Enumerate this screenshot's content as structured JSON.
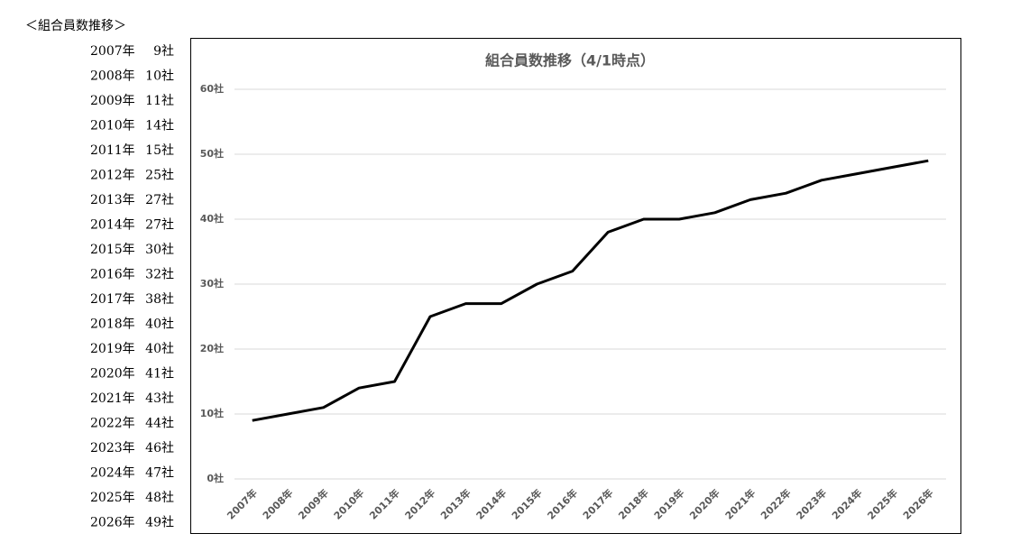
{
  "heading": "＜組合員数推移＞",
  "list": [
    {
      "year": "2007年",
      "count": "9社"
    },
    {
      "year": "2008年",
      "count": "10社"
    },
    {
      "year": "2009年",
      "count": "11社"
    },
    {
      "year": "2010年",
      "count": "14社"
    },
    {
      "year": "2011年",
      "count": "15社"
    },
    {
      "year": "2012年",
      "count": "25社"
    },
    {
      "year": "2013年",
      "count": "27社"
    },
    {
      "year": "2014年",
      "count": "27社"
    },
    {
      "year": "2015年",
      "count": "30社"
    },
    {
      "year": "2016年",
      "count": "32社"
    },
    {
      "year": "2017年",
      "count": "38社"
    },
    {
      "year": "2018年",
      "count": "40社"
    },
    {
      "year": "2019年",
      "count": "40社"
    },
    {
      "year": "2020年",
      "count": "41社"
    },
    {
      "year": "2021年",
      "count": "43社"
    },
    {
      "year": "2022年",
      "count": "44社"
    },
    {
      "year": "2023年",
      "count": "46社"
    },
    {
      "year": "2024年",
      "count": "47社"
    },
    {
      "year": "2025年",
      "count": "48社"
    },
    {
      "year": "2026年",
      "count": "49社"
    }
  ],
  "chart_data": {
    "type": "line",
    "title": "組合員数推移（4/1時点）",
    "categories": [
      "2007年",
      "2008年",
      "2009年",
      "2010年",
      "2011年",
      "2012年",
      "2013年",
      "2014年",
      "2015年",
      "2016年",
      "2017年",
      "2018年",
      "2019年",
      "2020年",
      "2021年",
      "2022年",
      "2023年",
      "2024年",
      "2025年",
      "2026年"
    ],
    "values": [
      9,
      10,
      11,
      14,
      15,
      25,
      27,
      27,
      30,
      32,
      38,
      40,
      40,
      41,
      43,
      44,
      46,
      47,
      48,
      49
    ],
    "color": "#000000",
    "ylim": [
      0,
      60
    ],
    "yticks": [
      {
        "value": 0,
        "label": "0社"
      },
      {
        "value": 10,
        "label": "10社"
      },
      {
        "value": 20,
        "label": "20社"
      },
      {
        "value": 30,
        "label": "30社"
      },
      {
        "value": 40,
        "label": "40社"
      },
      {
        "value": 50,
        "label": "50社"
      },
      {
        "value": 60,
        "label": "60社"
      }
    ],
    "grid": true
  }
}
